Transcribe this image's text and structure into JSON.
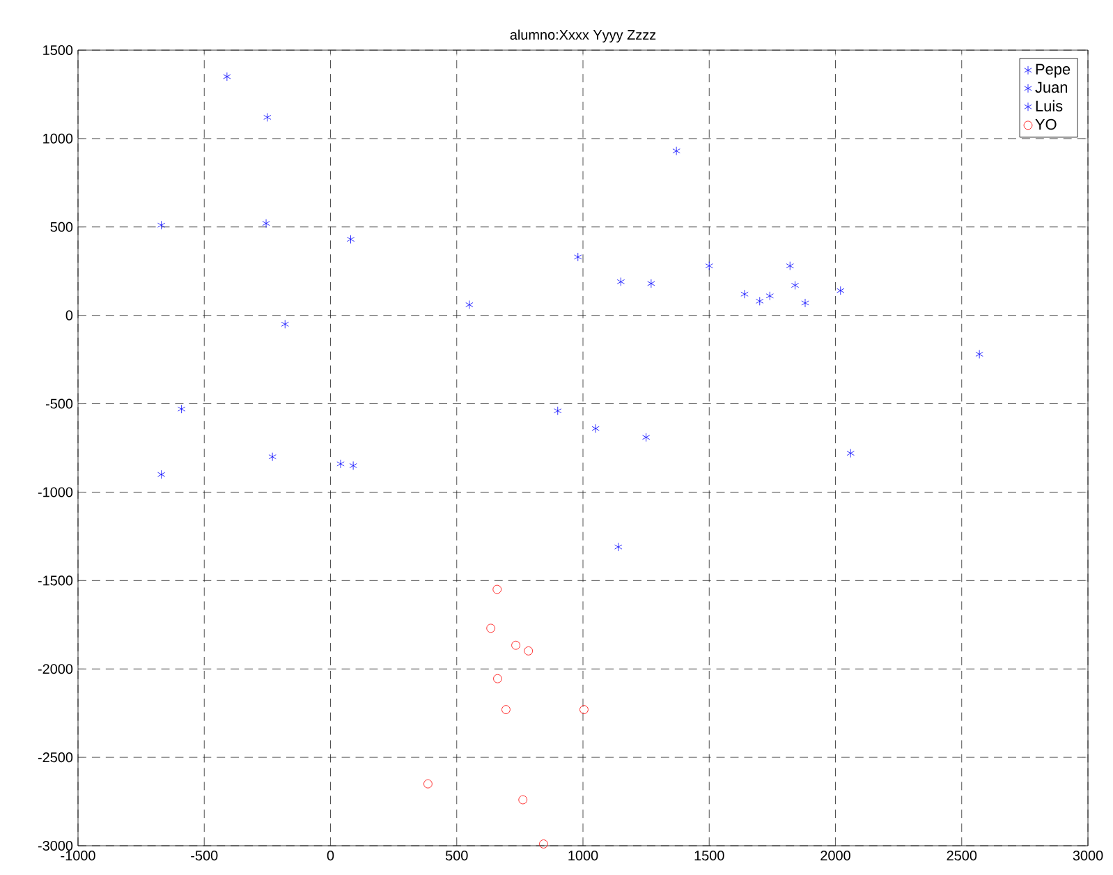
{
  "chart_data": {
    "type": "scatter",
    "title": "alumno:Xxxx Yyyy Zzzz",
    "xlim": [
      -1000,
      3000
    ],
    "ylim": [
      -3000,
      1500
    ],
    "xticks": [
      -1000,
      -500,
      0,
      500,
      1000,
      1500,
      2000,
      2500,
      3000
    ],
    "yticks": [
      -3000,
      -2500,
      -2000,
      -1500,
      -1000,
      -500,
      0,
      500,
      1000,
      1500
    ],
    "grid": true,
    "legend": "top right",
    "series": [
      {
        "name": "Pepe",
        "color": "#0000ff",
        "marker": "cross",
        "x": [
          -670,
          -410,
          -250,
          -255,
          -180,
          80,
          550,
          980,
          1370,
          1500
        ],
        "values": [
          510,
          1350,
          1120,
          520,
          -50,
          430,
          60,
          330,
          930,
          280
        ]
      },
      {
        "name": "Juan",
        "color": "#0000ff",
        "marker": "cross",
        "x": [
          1150,
          1270,
          1640,
          1700,
          1740,
          1820,
          1840,
          1880,
          2020,
          2570
        ],
        "values": [
          190,
          180,
          120,
          80,
          110,
          280,
          170,
          70,
          140,
          -220
        ]
      },
      {
        "name": "Luis",
        "color": "#0000ff",
        "marker": "cross",
        "x": [
          -590,
          -670,
          -230,
          40,
          90,
          900,
          1050,
          1250,
          2060,
          1140
        ],
        "values": [
          -530,
          -900,
          -800,
          -840,
          -850,
          -540,
          -640,
          -690,
          -780,
          -1310
        ]
      },
      {
        "name": "YO",
        "color": "#ff0000",
        "marker": "circle",
        "x": [
          660,
          635,
          734,
          784,
          662,
          695,
          1004,
          386,
          762,
          844
        ],
        "values": [
          -1550,
          -1770,
          -1866,
          -1898,
          -2055,
          -2230,
          -2230,
          -2650,
          -2740,
          -2990
        ]
      }
    ]
  }
}
